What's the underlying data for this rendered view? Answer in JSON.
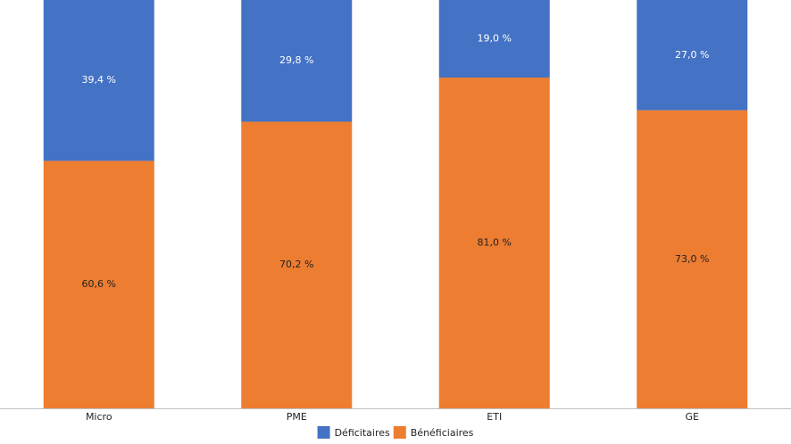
{
  "chart_data": {
    "type": "stacked-bar",
    "categories": [
      "Micro",
      "PME",
      "ETI",
      "GE"
    ],
    "series": [
      {
        "name": "Bénéficiaires",
        "color": "#ed7d31",
        "values": [
          60.6,
          70.2,
          81.0,
          73.0
        ],
        "value_labels": [
          "60,6 %",
          "70,2 %",
          "81,0 %",
          "73,0 %"
        ]
      },
      {
        "name": "Déficitaires",
        "color": "#4472c4",
        "values": [
          39.4,
          29.8,
          19.0,
          27.0
        ],
        "value_labels": [
          "39,4 %",
          "29,8 %",
          "19,0 %",
          "27,0 %"
        ]
      }
    ],
    "ylim": [
      0,
      100
    ],
    "grid": false,
    "legend": "bottom"
  }
}
